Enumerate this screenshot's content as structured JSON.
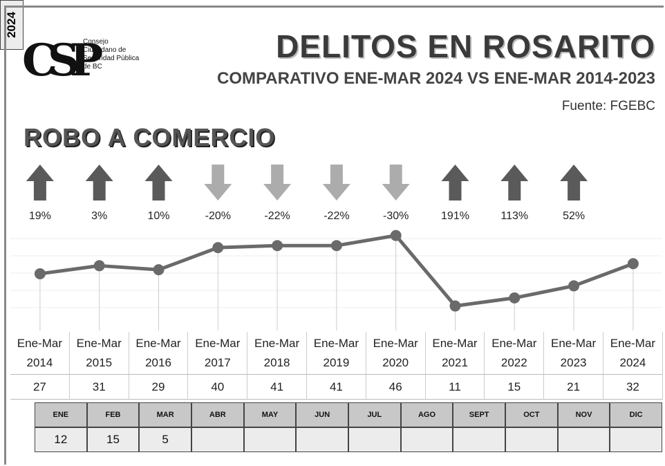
{
  "logo_text": "Consejo Ciudadano de Seguridad Pública de BC",
  "logo_initials": "CSP",
  "title": "DELITOS EN ROSARITO",
  "subtitle": "COMPARATIVO ENE-MAR 2024 VS ENE-MAR 2014-2023",
  "source": "Fuente: FGEBC",
  "chart_data": {
    "type": "line",
    "title": "ROBO A COMERCIO",
    "categories": [
      "Ene-Mar 2014",
      "Ene-Mar 2015",
      "Ene-Mar 2016",
      "Ene-Mar 2017",
      "Ene-Mar 2018",
      "Ene-Mar 2019",
      "Ene-Mar 2020",
      "Ene-Mar 2021",
      "Ene-Mar 2022",
      "Ene-Mar 2023",
      "Ene-Mar 2024"
    ],
    "values": [
      27,
      31,
      29,
      40,
      41,
      41,
      46,
      11,
      15,
      21,
      32
    ],
    "color": "#6a6a6a",
    "ylim": [
      5,
      50
    ],
    "changes": {
      "values": [
        19,
        3,
        10,
        -20,
        -22,
        -22,
        -30,
        191,
        113,
        52
      ],
      "value_labels": [
        "19%",
        "3%",
        "10%",
        "-20%",
        "-22%",
        "-22%",
        "-30%",
        "191%",
        "113%",
        "52%"
      ],
      "up_color": "#5a5a5a",
      "down_color": "#acacac"
    }
  },
  "monthly": {
    "year": "2024",
    "months": [
      "ENE",
      "FEB",
      "MAR",
      "ABR",
      "MAY",
      "JUN",
      "JUL",
      "AGO",
      "SEPT",
      "OCT",
      "NOV",
      "DIC"
    ],
    "values": [
      12,
      15,
      5,
      null,
      null,
      null,
      null,
      null,
      null,
      null,
      null,
      null
    ]
  }
}
